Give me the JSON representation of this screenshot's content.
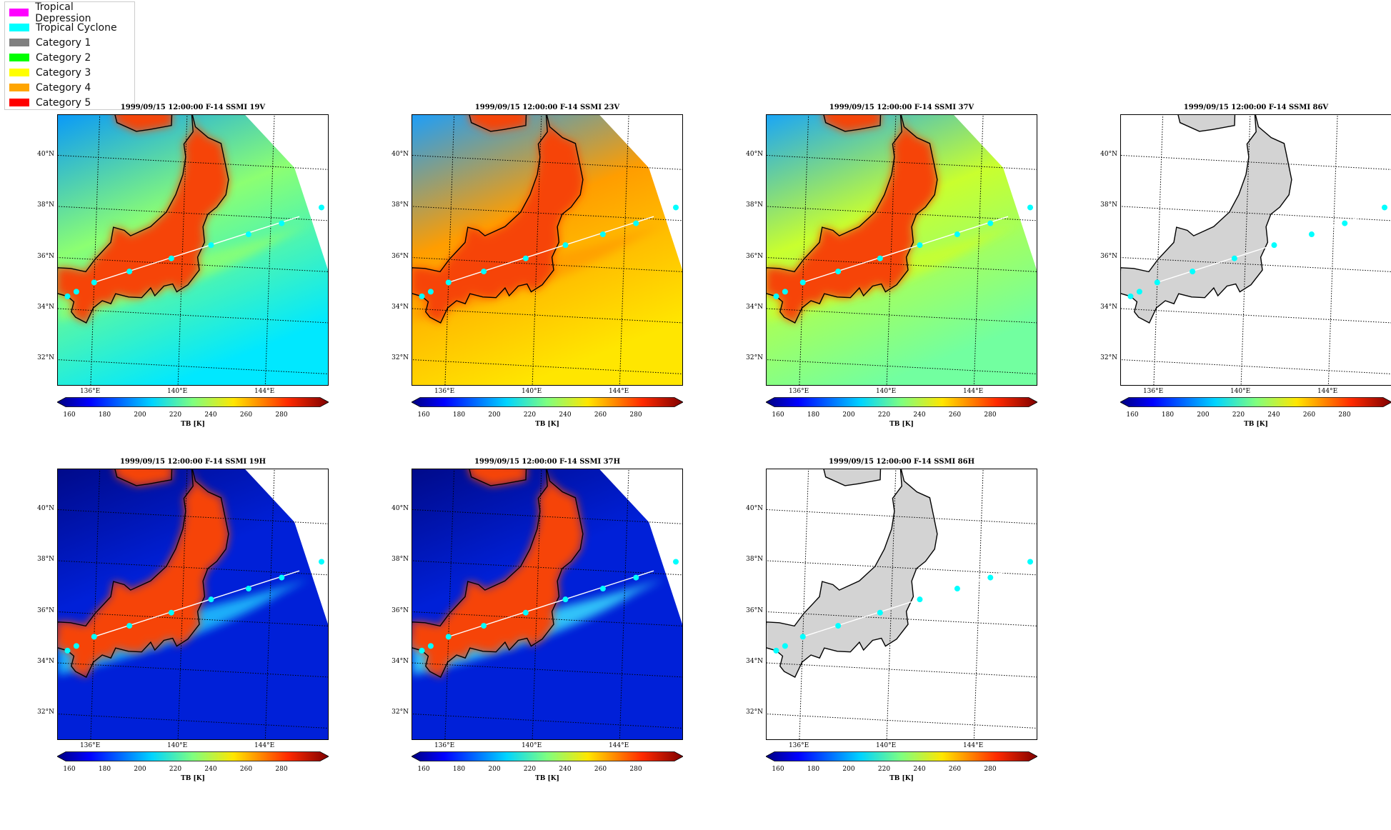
{
  "legend": [
    {
      "label": "Tropical Depression",
      "color": "#ff00ff"
    },
    {
      "label": "Tropical Cyclone",
      "color": "#00ffff"
    },
    {
      "label": "Category 1",
      "color": "#808080"
    },
    {
      "label": "Category 2",
      "color": "#00ff00"
    },
    {
      "label": "Category 3",
      "color": "#ffff00"
    },
    {
      "label": "Category 4",
      "color": "#ffa500"
    },
    {
      "label": "Category 5",
      "color": "#ff0000"
    }
  ],
  "lat_labels": [
    "40°N",
    "38°N",
    "36°N",
    "34°N",
    "32°N"
  ],
  "lon_labels": [
    "136°E",
    "140°E",
    "144°E"
  ],
  "colorbar": {
    "ticks": [
      "160",
      "180",
      "200",
      "220",
      "240",
      "260",
      "280"
    ],
    "label": "TB [K]"
  },
  "track_points": [
    {
      "lon": 134.8,
      "lat": 34.5
    },
    {
      "lon": 135.2,
      "lat": 34.7
    },
    {
      "lon": 136.0,
      "lat": 35.1
    },
    {
      "lon": 137.6,
      "lat": 35.6
    },
    {
      "lon": 139.5,
      "lat": 36.2
    },
    {
      "lon": 141.3,
      "lat": 36.8
    },
    {
      "lon": 143.0,
      "lat": 37.3
    },
    {
      "lon": 144.5,
      "lat": 37.8
    },
    {
      "lon": 146.3,
      "lat": 38.5
    }
  ],
  "track_color": "#00ffff",
  "panels": [
    {
      "title": "1999/09/15 12:00:00  F-14 SSMI 19V",
      "style": "v19"
    },
    {
      "title": "1999/09/15 12:00:00  F-14 SSMI 23V",
      "style": "v23"
    },
    {
      "title": "1999/09/15 12:00:00  F-14 SSMI 37V",
      "style": "v37"
    },
    {
      "title": "1999/09/15 12:00:00  F-14 SSMI 86V",
      "style": "empty"
    },
    {
      "title": "1999/09/15 12:00:00  F-14 SSMI 19H",
      "style": "h19"
    },
    {
      "title": "1999/09/15 12:00:00  F-14 SSMI 37H",
      "style": "h37"
    },
    {
      "title": "1999/09/15 12:00:00  F-14 SSMI 86H",
      "style": "empty"
    }
  ]
}
